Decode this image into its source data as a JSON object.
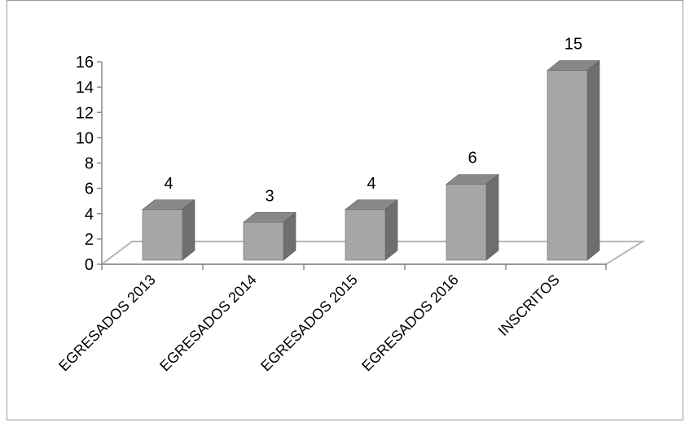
{
  "chart_data": {
    "type": "bar",
    "style": "3d-column",
    "categories": [
      "EGRESADOS 2013",
      "EGRESADOS 2014",
      "EGRESADOS 2015",
      "EGRESADOS 2016",
      "INSCRITOS"
    ],
    "values": [
      4,
      3,
      4,
      6,
      15
    ],
    "data_labels": [
      "4",
      "3",
      "4",
      "6",
      "15"
    ],
    "ylim": [
      0,
      16
    ],
    "yticks": [
      0,
      2,
      4,
      6,
      8,
      10,
      12,
      14,
      16
    ],
    "grid": false,
    "legend": "none",
    "colors": {
      "bar_front": "#a6a6a6",
      "bar_side": "#6e6e6e",
      "bar_top": "#888888",
      "floor": "#ffffff",
      "floor_edge": "#b5b5b5",
      "axis": "#8c8c8c"
    }
  }
}
